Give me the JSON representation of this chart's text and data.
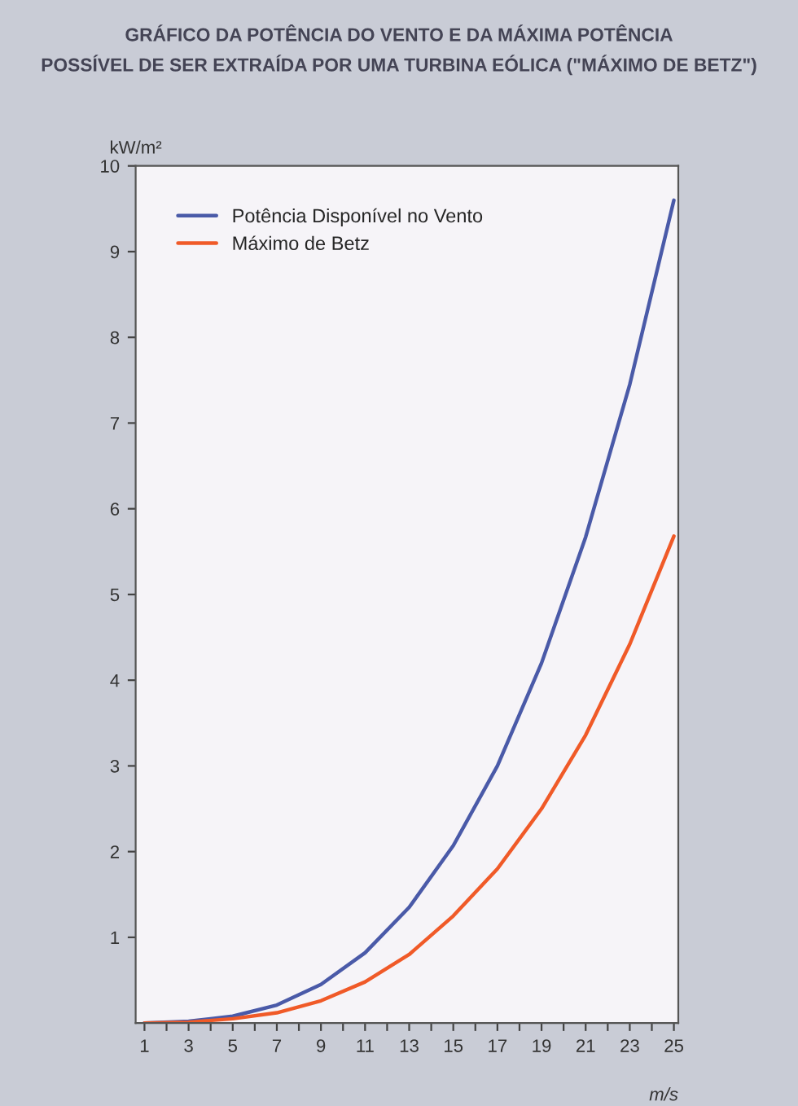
{
  "chart_data": {
    "type": "line",
    "title": "GRÁFICO DA POTÊNCIA DO VENTO E DA MÁXIMA POTÊNCIA\nPOSSÍVEL DE SER EXTRAÍDA POR UMA TURBINA EÓLICA (\"MÁXIMO DE BETZ\")",
    "xlabel": "m/s",
    "ylabel": "kW/m²",
    "x": [
      1,
      3,
      5,
      7,
      9,
      11,
      13,
      15,
      17,
      19,
      21,
      23,
      25
    ],
    "series": [
      {
        "name": "Potência Disponível no Vento",
        "color": "#4a5aa8",
        "values": [
          0.0,
          0.02,
          0.08,
          0.21,
          0.45,
          0.82,
          1.35,
          2.07,
          3.0,
          4.2,
          5.67,
          7.45,
          9.6
        ]
      },
      {
        "name": "Máximo de Betz",
        "color": "#f05a28",
        "values": [
          0.0,
          0.01,
          0.05,
          0.12,
          0.26,
          0.48,
          0.8,
          1.25,
          1.8,
          2.5,
          3.36,
          4.42,
          5.68
        ]
      }
    ],
    "xlim": [
      0.6,
      25.2
    ],
    "xticks": [
      1,
      {
        "value": 2,
        "label": null
      },
      3,
      {
        "value": 4,
        "label": null
      },
      5,
      {
        "value": 6,
        "label": null
      },
      7,
      {
        "value": 8,
        "label": null
      },
      9,
      {
        "value": 10,
        "label": null
      },
      11,
      {
        "value": 12,
        "label": null
      },
      13,
      {
        "value": 14,
        "label": null
      },
      15,
      {
        "value": 16,
        "label": null
      },
      17,
      {
        "value": 18,
        "label": null
      },
      19,
      {
        "value": 20,
        "label": null
      },
      21,
      {
        "value": 22,
        "label": null
      },
      23,
      {
        "value": 24,
        "label": null
      },
      25
    ],
    "ylim": [
      0,
      10
    ],
    "yticks": [
      1,
      2,
      3,
      4,
      5,
      6,
      7,
      8,
      9,
      10
    ],
    "grid": false,
    "legend": "top left",
    "marker": "none",
    "line_style": "solid"
  }
}
